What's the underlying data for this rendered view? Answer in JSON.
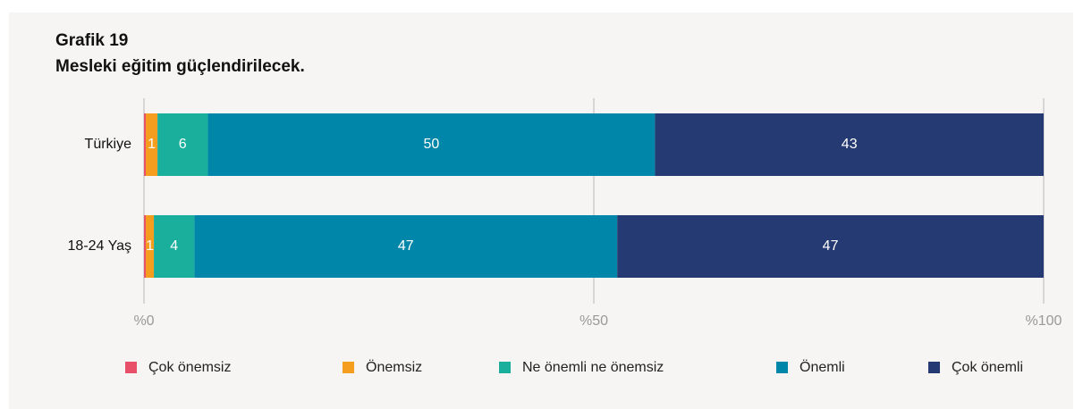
{
  "chart_data": {
    "type": "stacked_barh",
    "title": "Grafik 19",
    "subtitle": "Mesleki eğitim güçlendirilecek.",
    "categories": [
      "Türkiye",
      "18-24 Yaş"
    ],
    "series": [
      {
        "name": "Çok önemsiz",
        "color": "#e8506a",
        "values": [
          0.2,
          0.2
        ],
        "value_labels": [
          null,
          null
        ]
      },
      {
        "name": "Önemsiz",
        "color": "#f59d1f",
        "values": [
          1.3,
          0.9
        ],
        "value_labels": [
          "1",
          "1"
        ]
      },
      {
        "name": "Ne önemli ne önemsiz",
        "color": "#1aaf9d",
        "values": [
          5.6,
          4.5
        ],
        "value_labels": [
          "6",
          "4"
        ]
      },
      {
        "name": "Önemli",
        "color": "#0086a8",
        "values": [
          49.7,
          47.0
        ],
        "value_labels": [
          "50",
          "47"
        ]
      },
      {
        "name": "Çok önemli",
        "color": "#253a72",
        "values": [
          43.2,
          47.4
        ],
        "value_labels": [
          "43",
          "47"
        ]
      }
    ],
    "xlim": [
      0,
      100
    ],
    "xticks": [
      {
        "value": 0,
        "label": "%0"
      },
      {
        "value": 50,
        "label": "%50"
      },
      {
        "value": 100,
        "label": "%100"
      }
    ],
    "grid": true,
    "legend": "bottom"
  }
}
